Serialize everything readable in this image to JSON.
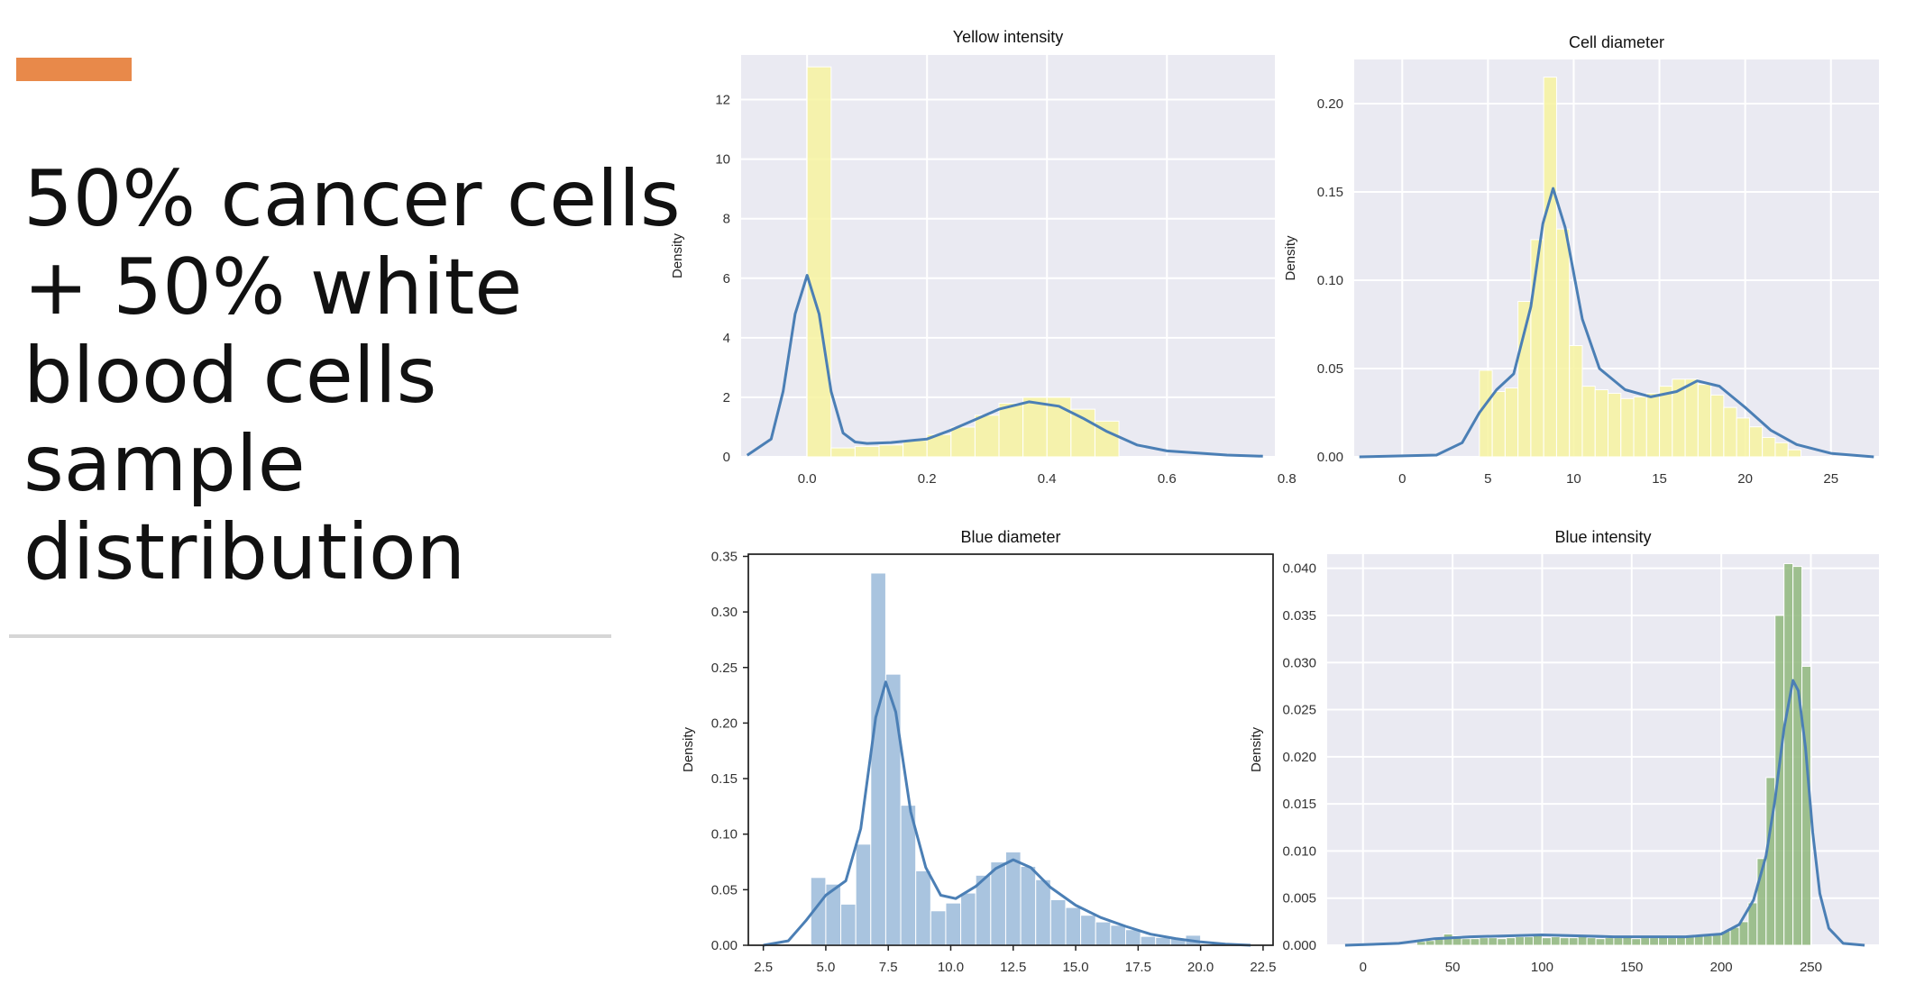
{
  "slide": {
    "title_lines": [
      "50% cancer cells",
      "+ 50% white",
      "blood cells",
      "sample",
      "distribution"
    ],
    "accent_color": "#E8894A"
  },
  "chart_data": [
    {
      "type": "bar",
      "title": "Yellow intensity",
      "xlabel": "",
      "ylabel": "Density",
      "style": "seaborn-darkgrid",
      "bar_color": "#F7F3A0",
      "line_color": "#4B7FB5",
      "xlim": [
        -0.11,
        0.78
      ],
      "ylim": [
        0,
        13.5
      ],
      "xticks": [
        0.0,
        0.2,
        0.4,
        0.6,
        0.8
      ],
      "xtick_labels": [
        "0.0",
        "0.2",
        "0.4",
        "0.6",
        "0.8"
      ],
      "yticks": [
        0,
        2,
        4,
        6,
        8,
        10,
        12
      ],
      "ytick_labels": [
        "0",
        "2",
        "4",
        "6",
        "8",
        "10",
        "12"
      ],
      "bin_edges": [
        0.0,
        0.04,
        0.08,
        0.12,
        0.16,
        0.2,
        0.24,
        0.28,
        0.32,
        0.36,
        0.4,
        0.44,
        0.48,
        0.52
      ],
      "bar_heights": [
        13.1,
        0.3,
        0.35,
        0.4,
        0.55,
        0.75,
        1.0,
        1.4,
        1.8,
        2.0,
        2.0,
        1.6,
        1.2
      ],
      "kde_x": [
        -0.1,
        -0.06,
        -0.04,
        -0.02,
        0.0,
        0.02,
        0.04,
        0.06,
        0.08,
        0.1,
        0.14,
        0.2,
        0.24,
        0.28,
        0.32,
        0.37,
        0.42,
        0.46,
        0.5,
        0.55,
        0.6,
        0.7,
        0.76
      ],
      "kde_y": [
        0.05,
        0.6,
        2.2,
        4.8,
        6.1,
        4.8,
        2.2,
        0.8,
        0.5,
        0.45,
        0.48,
        0.6,
        0.9,
        1.25,
        1.6,
        1.85,
        1.7,
        1.3,
        0.85,
        0.4,
        0.2,
        0.06,
        0.02
      ]
    },
    {
      "type": "bar",
      "title": "Cell diameter",
      "xlabel": "",
      "ylabel": "Density",
      "style": "seaborn-darkgrid",
      "bar_color": "#F7F3A0",
      "line_color": "#4B7FB5",
      "xlim": [
        -2.8,
        27.8
      ],
      "ylim": [
        0,
        0.225
      ],
      "xticks": [
        0,
        5,
        10,
        15,
        20,
        25
      ],
      "xtick_labels": [
        "0",
        "5",
        "10",
        "15",
        "20",
        "25"
      ],
      "yticks": [
        0.0,
        0.05,
        0.1,
        0.15,
        0.2
      ],
      "ytick_labels": [
        "0.00",
        "0.05",
        "0.10",
        "0.15",
        "0.20"
      ],
      "bin_edges": [
        4.5,
        5.25,
        6.0,
        6.75,
        7.5,
        8.25,
        9.0,
        9.75,
        10.5,
        11.25,
        12.0,
        12.75,
        13.5,
        14.25,
        15.0,
        15.75,
        16.5,
        17.25,
        18.0,
        18.75,
        19.5,
        20.25,
        21.0,
        21.75,
        22.5,
        23.25
      ],
      "bar_heights": [
        0.049,
        0.037,
        0.039,
        0.088,
        0.123,
        0.215,
        0.129,
        0.063,
        0.04,
        0.038,
        0.036,
        0.033,
        0.034,
        0.036,
        0.04,
        0.044,
        0.044,
        0.041,
        0.035,
        0.028,
        0.022,
        0.017,
        0.011,
        0.008,
        0.004
      ],
      "kde_x": [
        -2.5,
        2.0,
        3.5,
        4.5,
        5.5,
        6.5,
        7.5,
        8.2,
        8.8,
        9.5,
        10.5,
        11.5,
        13.0,
        14.5,
        16.0,
        17.2,
        18.5,
        20.0,
        21.5,
        23.0,
        25.0,
        27.5
      ],
      "kde_y": [
        0.0,
        0.001,
        0.008,
        0.025,
        0.038,
        0.047,
        0.085,
        0.132,
        0.152,
        0.13,
        0.078,
        0.05,
        0.038,
        0.034,
        0.037,
        0.043,
        0.04,
        0.028,
        0.015,
        0.007,
        0.002,
        0.0
      ]
    },
    {
      "type": "bar",
      "title": "Blue diameter",
      "xlabel": "",
      "ylabel": "Density",
      "style": "classic-white",
      "bar_color": "#A9C4DF",
      "line_color": "#4B7FB5",
      "xlim": [
        1.9,
        22.9
      ],
      "ylim": [
        0,
        0.352
      ],
      "xticks": [
        2.5,
        5.0,
        7.5,
        10.0,
        12.5,
        15.0,
        17.5,
        20.0,
        22.5
      ],
      "xtick_labels": [
        "2.5",
        "5.0",
        "7.5",
        "10.0",
        "12.5",
        "15.0",
        "17.5",
        "20.0",
        "22.5"
      ],
      "yticks": [
        0.0,
        0.05,
        0.1,
        0.15,
        0.2,
        0.25,
        0.3,
        0.35
      ],
      "ytick_labels": [
        "0.00",
        "0.05",
        "0.10",
        "0.15",
        "0.20",
        "0.25",
        "0.30",
        "0.35"
      ],
      "bin_edges": [
        4.4,
        5.0,
        5.6,
        6.2,
        6.8,
        7.4,
        8.0,
        8.6,
        9.2,
        9.8,
        10.4,
        11.0,
        11.6,
        12.2,
        12.8,
        13.4,
        14.0,
        14.6,
        15.2,
        15.8,
        16.4,
        17.0,
        17.6,
        18.2,
        18.8,
        19.4,
        20.0
      ],
      "bar_heights": [
        0.061,
        0.055,
        0.037,
        0.091,
        0.335,
        0.244,
        0.126,
        0.067,
        0.031,
        0.038,
        0.047,
        0.063,
        0.075,
        0.084,
        0.071,
        0.059,
        0.041,
        0.034,
        0.027,
        0.021,
        0.018,
        0.014,
        0.008,
        0.007,
        0.006,
        0.009
      ],
      "kde_x": [
        2.5,
        3.5,
        4.2,
        5.0,
        5.8,
        6.4,
        7.0,
        7.4,
        7.8,
        8.4,
        9.0,
        9.6,
        10.2,
        11.0,
        11.8,
        12.5,
        13.2,
        14.0,
        15.0,
        16.0,
        17.0,
        18.0,
        19.0,
        20.0,
        21.0,
        22.0
      ],
      "kde_y": [
        0.0,
        0.004,
        0.022,
        0.045,
        0.058,
        0.105,
        0.205,
        0.237,
        0.21,
        0.12,
        0.07,
        0.045,
        0.042,
        0.053,
        0.069,
        0.077,
        0.07,
        0.052,
        0.036,
        0.025,
        0.017,
        0.01,
        0.006,
        0.003,
        0.001,
        0.0
      ]
    },
    {
      "type": "bar",
      "title": "Blue intensity",
      "xlabel": "",
      "ylabel": "Density",
      "style": "seaborn-darkgrid",
      "bar_color": "#8FB77C",
      "line_color": "#4B7FB5",
      "xlim": [
        -20,
        288
      ],
      "ylim": [
        0,
        0.0415
      ],
      "xticks": [
        0,
        50,
        100,
        150,
        200,
        250
      ],
      "xtick_labels": [
        "0",
        "50",
        "100",
        "150",
        "200",
        "250"
      ],
      "yticks": [
        0.0,
        0.005,
        0.01,
        0.015,
        0.02,
        0.025,
        0.03,
        0.035,
        0.04
      ],
      "ytick_labels": [
        "0.000",
        "0.005",
        "0.010",
        "0.015",
        "0.020",
        "0.025",
        "0.030",
        "0.035",
        "0.040"
      ],
      "bin_edges": [
        30,
        35,
        40,
        45,
        50,
        55,
        60,
        65,
        70,
        75,
        80,
        85,
        90,
        95,
        100,
        105,
        110,
        115,
        120,
        125,
        130,
        135,
        140,
        145,
        150,
        155,
        160,
        165,
        170,
        175,
        180,
        185,
        190,
        195,
        200,
        205,
        210,
        215,
        220,
        225,
        230,
        235,
        240,
        245,
        250
      ],
      "bar_heights": [
        0.0004,
        0.0005,
        0.0007,
        0.0012,
        0.001,
        0.0007,
        0.0007,
        0.0008,
        0.0008,
        0.0007,
        0.0008,
        0.0009,
        0.0009,
        0.001,
        0.0008,
        0.0009,
        0.0008,
        0.0008,
        0.0009,
        0.0008,
        0.0007,
        0.0008,
        0.0008,
        0.0009,
        0.0007,
        0.0008,
        0.0008,
        0.0009,
        0.0008,
        0.0009,
        0.0009,
        0.0011,
        0.001,
        0.0012,
        0.0015,
        0.0019,
        0.0025,
        0.0045,
        0.0092,
        0.0178,
        0.035,
        0.0405,
        0.0402,
        0.0296
      ],
      "kde_x": [
        -10,
        20,
        40,
        60,
        100,
        140,
        180,
        200,
        210,
        218,
        225,
        230,
        235,
        240,
        243,
        247,
        251,
        255,
        260,
        268,
        280
      ],
      "kde_y": [
        0.0,
        0.0002,
        0.0007,
        0.0009,
        0.0011,
        0.0009,
        0.0009,
        0.0012,
        0.0022,
        0.0048,
        0.0095,
        0.0155,
        0.023,
        0.0281,
        0.027,
        0.021,
        0.012,
        0.0055,
        0.0018,
        0.0002,
        0.0
      ]
    }
  ]
}
